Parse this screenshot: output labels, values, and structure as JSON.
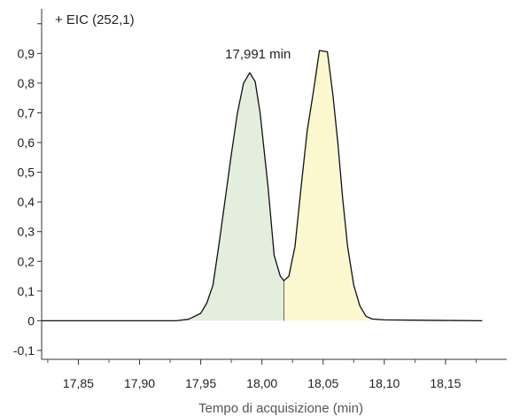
{
  "chart_data": {
    "type": "area",
    "title": "+ EIC (252,1)",
    "xlabel": "Tempo di acquisizione (min)",
    "ylabel": "",
    "xlim": [
      17.82,
      18.2
    ],
    "ylim": [
      -0.13,
      1.05
    ],
    "x_ticks": [
      "17,85",
      "17,90",
      "17,95",
      "18,00",
      "18,05",
      "18,10",
      "18,15"
    ],
    "x_tick_values": [
      17.85,
      17.9,
      17.95,
      18.0,
      18.05,
      18.1,
      18.15
    ],
    "y_ticks": [
      "-0,1",
      "0",
      "0,1",
      "0,2",
      "0,3",
      "0,4",
      "0,5",
      "0,6",
      "0,7",
      "0,8",
      "0,9"
    ],
    "y_tick_values": [
      -0.1,
      0,
      0.1,
      0.2,
      0.3,
      0.4,
      0.5,
      0.6,
      0.7,
      0.8,
      0.9
    ],
    "split_x": 18.018,
    "peak_fill_colors": [
      "#e3eedc",
      "#fbf8d0"
    ],
    "trace": {
      "x": [
        17.82,
        17.88,
        17.93,
        17.94,
        17.95,
        17.955,
        17.96,
        17.965,
        17.97,
        17.975,
        17.98,
        17.985,
        17.99,
        17.9945,
        17.9985,
        18.005,
        18.01,
        18.015,
        18.018,
        18.022,
        18.027,
        18.032,
        18.037,
        18.042,
        18.047,
        18.0535,
        18.058,
        18.062,
        18.066,
        18.07,
        18.075,
        18.08,
        18.085,
        18.09,
        18.1,
        18.12,
        18.15,
        18.18
      ],
      "y": [
        0,
        0,
        0,
        0.005,
        0.025,
        0.06,
        0.12,
        0.26,
        0.41,
        0.56,
        0.7,
        0.8,
        0.835,
        0.805,
        0.7,
        0.45,
        0.22,
        0.15,
        0.135,
        0.15,
        0.25,
        0.45,
        0.64,
        0.77,
        0.91,
        0.905,
        0.76,
        0.6,
        0.41,
        0.25,
        0.12,
        0.05,
        0.015,
        0.006,
        0.003,
        0.002,
        0.001,
        0
      ]
    },
    "annotations": [
      {
        "text": "17,991 min",
        "x": 17.991,
        "y": 0.835
      }
    ],
    "grid": false,
    "legend": "none"
  }
}
